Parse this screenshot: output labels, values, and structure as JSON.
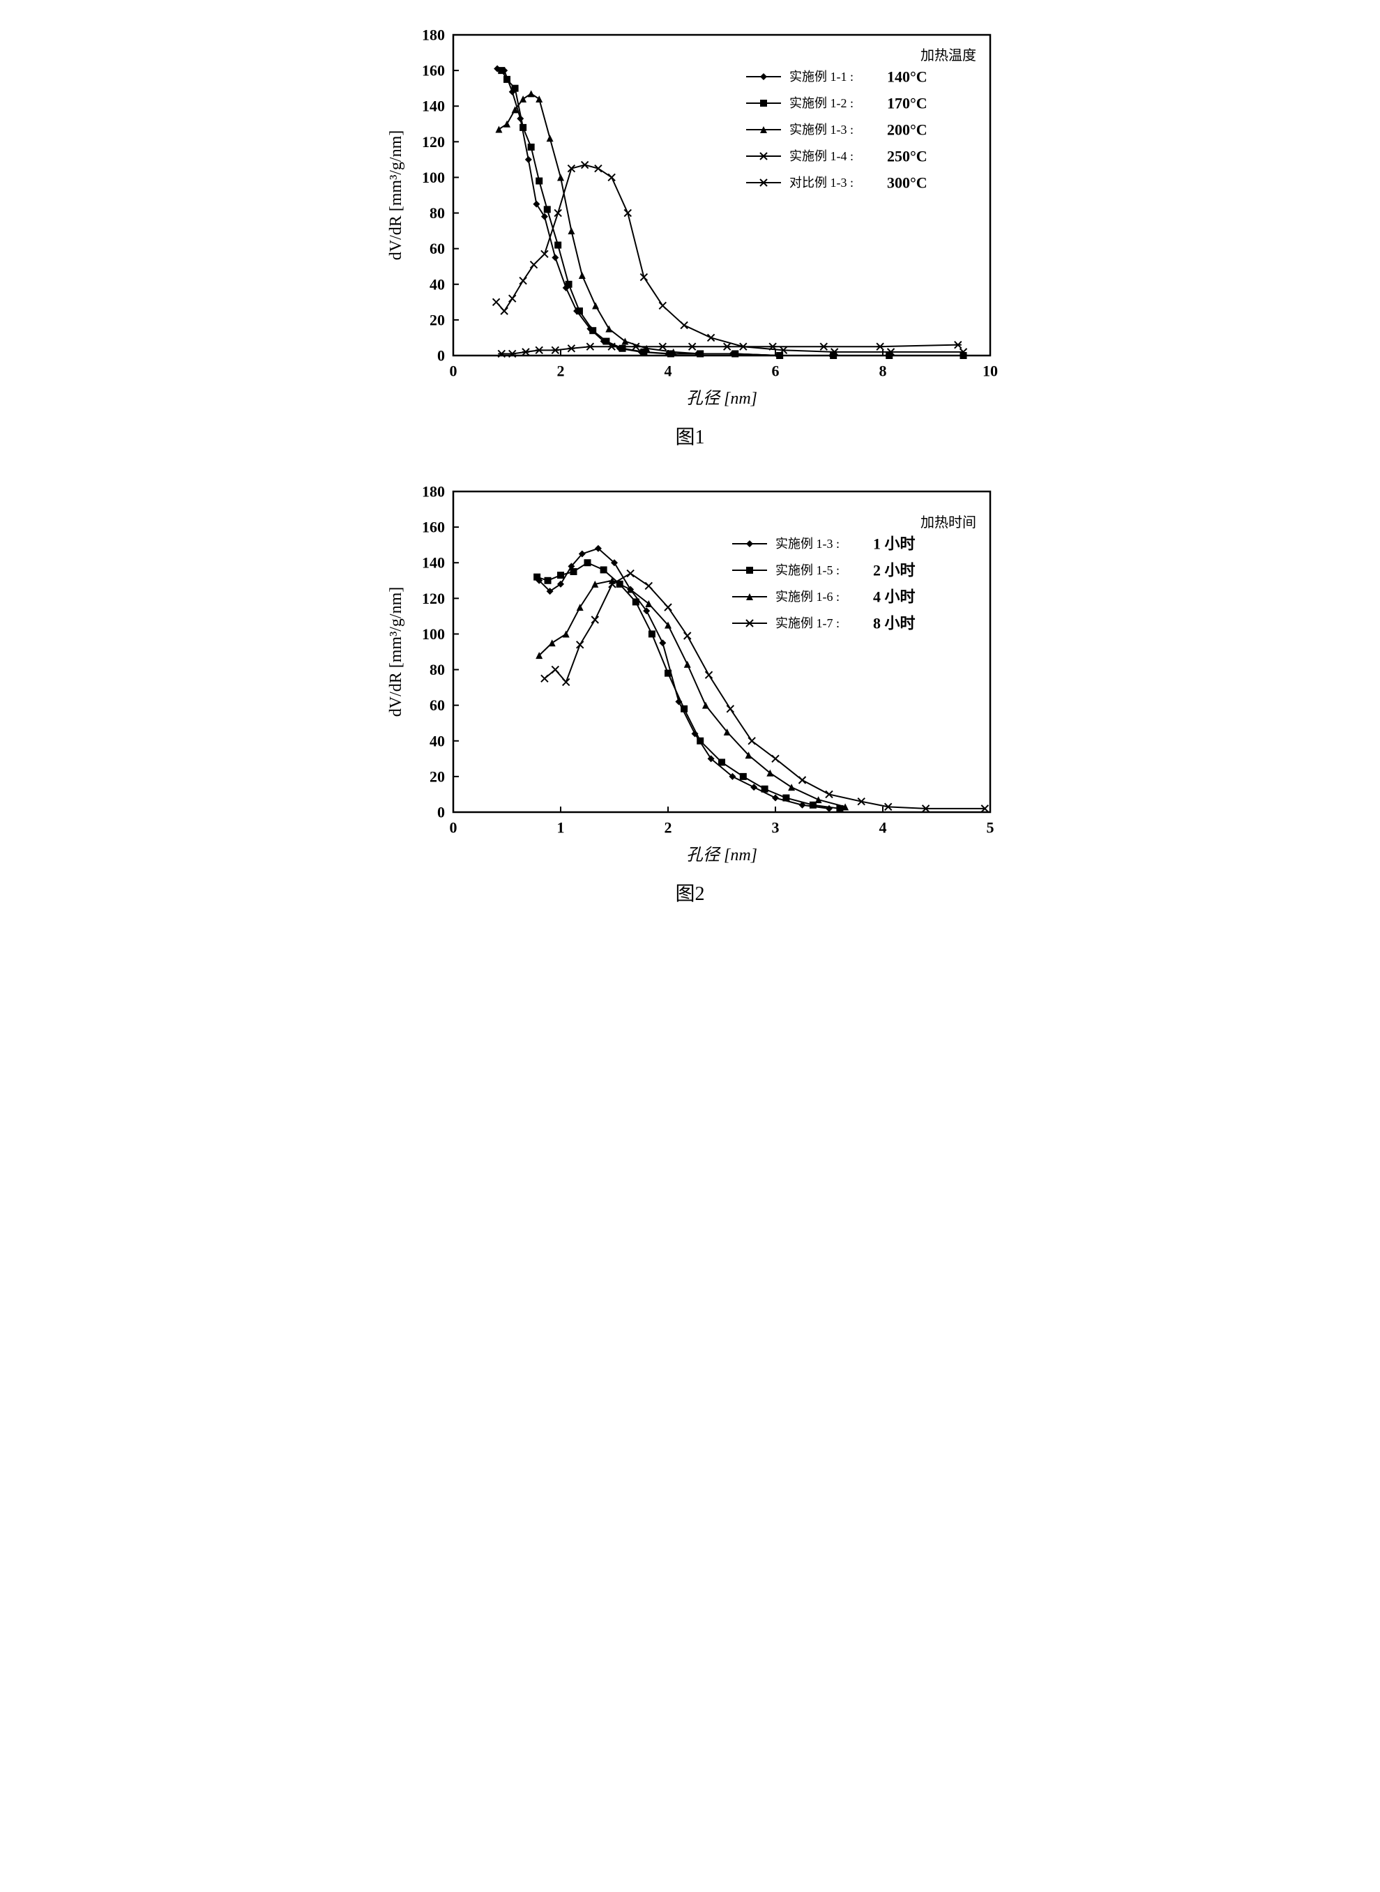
{
  "chart1": {
    "type": "line",
    "caption": "图1",
    "xlabel": "孔径 [nm]",
    "ylabel": "dV/dR [mm³/g/nm]",
    "xlim": [
      0,
      10
    ],
    "ylim": [
      0,
      180
    ],
    "xtick_step": 2,
    "ytick_step": 20,
    "axis_color": "#000000",
    "grid": false,
    "background": "#ffffff",
    "line_color": "#000000",
    "line_width": 2,
    "marker_size": 10,
    "legend_title": "加热温度",
    "label_fontsize": 24,
    "tick_fontsize": 22,
    "legend_fontsize": 20,
    "series": [
      {
        "name": "实施例 1-1",
        "label": "140°C",
        "marker": "diamond",
        "x": [
          0.82,
          0.95,
          1.1,
          1.25,
          1.4,
          1.55,
          1.7,
          1.9,
          2.1,
          2.3,
          2.55,
          2.8,
          3.1,
          3.5,
          4.0,
          4.55,
          5.2,
          6.05,
          7.05,
          8.1,
          9.5
        ],
        "y": [
          161,
          160,
          148,
          133,
          110,
          85,
          78,
          55,
          38,
          25,
          15,
          8,
          4,
          2,
          1,
          1,
          1,
          0,
          0,
          0,
          0
        ]
      },
      {
        "name": "实施例 1-2",
        "label": "170°C",
        "marker": "square",
        "x": [
          0.9,
          1.0,
          1.15,
          1.3,
          1.45,
          1.6,
          1.75,
          1.95,
          2.15,
          2.35,
          2.6,
          2.85,
          3.15,
          3.55,
          4.05,
          4.6,
          5.25,
          6.08,
          7.08,
          8.12,
          9.5
        ],
        "y": [
          160,
          155,
          150,
          128,
          117,
          98,
          82,
          62,
          40,
          25,
          14,
          8,
          4,
          2,
          1,
          1,
          1,
          0,
          0,
          0,
          0
        ]
      },
      {
        "name": "实施例 1-3",
        "label": "200°C",
        "marker": "triangle",
        "x": [
          0.85,
          1.0,
          1.15,
          1.3,
          1.45,
          1.6,
          1.8,
          2.0,
          2.2,
          2.4,
          2.65,
          2.9,
          3.2,
          3.6,
          4.1,
          4.6,
          5.25,
          6.08,
          7.08,
          8.12,
          9.5
        ],
        "y": [
          127,
          130,
          138,
          144,
          147,
          144,
          122,
          100,
          70,
          45,
          28,
          15,
          8,
          4,
          2,
          1,
          1,
          0,
          0,
          0,
          0
        ]
      },
      {
        "name": "实施例 1-4",
        "label": "250°C",
        "marker": "x",
        "x": [
          0.8,
          0.95,
          1.1,
          1.3,
          1.5,
          1.7,
          1.95,
          2.2,
          2.45,
          2.7,
          2.95,
          3.25,
          3.55,
          3.9,
          4.3,
          4.8,
          5.4,
          6.15,
          7.1,
          8.15,
          9.5
        ],
        "y": [
          30,
          25,
          32,
          42,
          51,
          57,
          80,
          105,
          107,
          105,
          100,
          80,
          44,
          28,
          17,
          10,
          5,
          3,
          2,
          2,
          2
        ]
      },
      {
        "name": "对比例 1-3",
        "label": "300°C",
        "marker": "star",
        "x": [
          0.9,
          1.1,
          1.35,
          1.6,
          1.9,
          2.2,
          2.55,
          2.95,
          3.4,
          3.9,
          4.45,
          5.1,
          5.95,
          6.9,
          7.95,
          9.4
        ],
        "y": [
          1,
          1,
          2,
          3,
          3,
          4,
          5,
          5,
          5,
          5,
          5,
          5,
          5,
          5,
          5,
          6
        ]
      }
    ]
  },
  "chart2": {
    "type": "line",
    "caption": "图2",
    "xlabel": "孔径 [nm]",
    "ylabel": "dV/dR [mm³/g/nm]",
    "xlim": [
      0,
      5
    ],
    "ylim": [
      0,
      180
    ],
    "xtick_step": 1,
    "ytick_step": 20,
    "axis_color": "#000000",
    "grid": false,
    "background": "#ffffff",
    "line_color": "#000000",
    "line_width": 2,
    "marker_size": 10,
    "legend_title": "加热时间",
    "label_fontsize": 24,
    "tick_fontsize": 22,
    "legend_fontsize": 20,
    "series": [
      {
        "name": "实施例 1-3",
        "label": "1 小时",
        "marker": "diamond",
        "x": [
          0.8,
          0.9,
          1.0,
          1.1,
          1.2,
          1.35,
          1.5,
          1.65,
          1.8,
          1.95,
          2.1,
          2.25,
          2.4,
          2.6,
          2.8,
          3.0,
          3.25,
          3.5
        ],
        "y": [
          130,
          124,
          128,
          138,
          145,
          148,
          140,
          125,
          113,
          95,
          62,
          44,
          30,
          20,
          14,
          8,
          4,
          2
        ]
      },
      {
        "name": "实施例 1-5",
        "label": "2 小时",
        "marker": "square",
        "x": [
          0.78,
          0.88,
          1.0,
          1.12,
          1.25,
          1.4,
          1.55,
          1.7,
          1.85,
          2.0,
          2.15,
          2.3,
          2.5,
          2.7,
          2.9,
          3.1,
          3.35,
          3.6
        ],
        "y": [
          132,
          130,
          133,
          135,
          140,
          136,
          128,
          118,
          100,
          78,
          58,
          40,
          28,
          20,
          13,
          8,
          4,
          2
        ]
      },
      {
        "name": "实施例 1-6",
        "label": "4 小时",
        "marker": "triangle",
        "x": [
          0.8,
          0.92,
          1.05,
          1.18,
          1.32,
          1.48,
          1.65,
          1.82,
          2.0,
          2.18,
          2.35,
          2.55,
          2.75,
          2.95,
          3.15,
          3.4,
          3.65
        ],
        "y": [
          88,
          95,
          100,
          115,
          128,
          130,
          125,
          117,
          105,
          83,
          60,
          45,
          32,
          22,
          14,
          7,
          3
        ]
      },
      {
        "name": "实施例 1-7",
        "label": "8 小时",
        "marker": "x",
        "x": [
          0.85,
          0.95,
          1.05,
          1.18,
          1.32,
          1.48,
          1.65,
          1.82,
          2.0,
          2.18,
          2.38,
          2.58,
          2.78,
          3.0,
          3.25,
          3.5,
          3.8,
          4.05,
          4.4,
          4.95
        ],
        "y": [
          75,
          80,
          73,
          94,
          108,
          128,
          134,
          127,
          115,
          99,
          77,
          58,
          40,
          30,
          18,
          10,
          6,
          3,
          2,
          2
        ]
      }
    ]
  }
}
